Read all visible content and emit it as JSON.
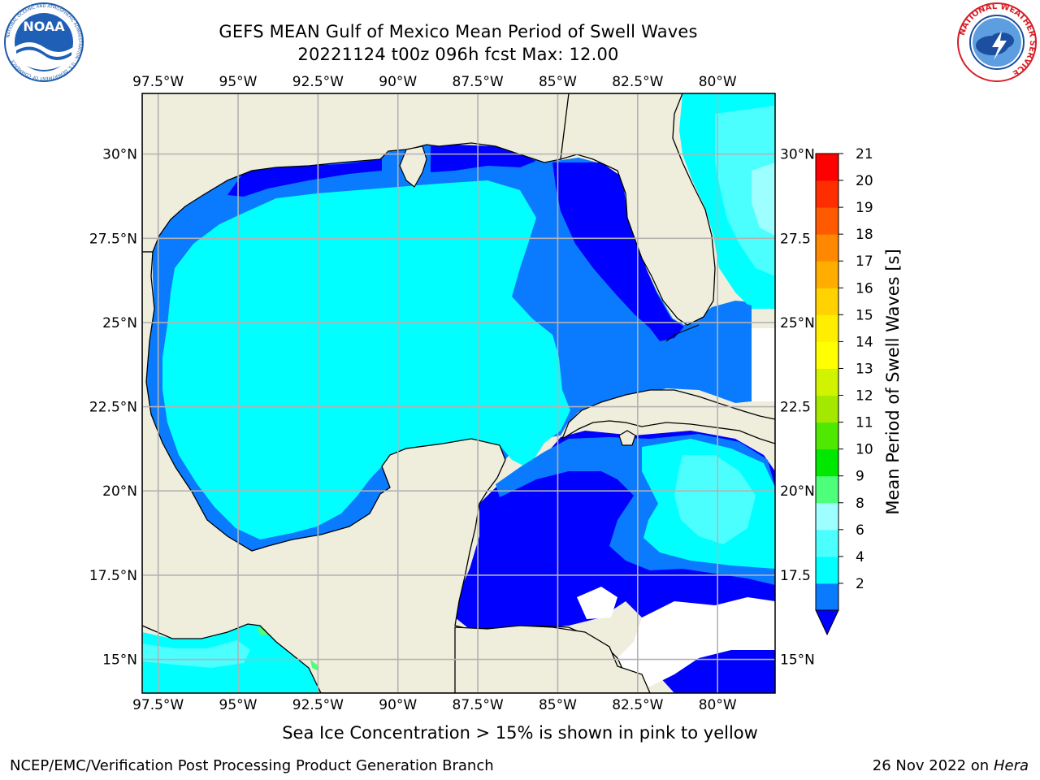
{
  "header": {
    "title_line1": "GEFS MEAN Gulf of Mexico Mean Period of Swell Waves",
    "title_line2": "20221124 t00z 096h fcst   Max: 12.00"
  },
  "logos": {
    "noaa_text": "NOAA",
    "noaa_ring_text": "NATIONAL OCEANIC AND ATMOSPHERIC ADMINISTRATION · U.S. DEPARTMENT OF COMMERCE",
    "nws_ring_text": "NATIONAL WEATHER SERVICE"
  },
  "map": {
    "lon_labels": [
      "97.5°W",
      "95°W",
      "92.5°W",
      "90°W",
      "87.5°W",
      "85°W",
      "82.5°W",
      "80°W"
    ],
    "lon_values": [
      -97.5,
      -95,
      -92.5,
      -90,
      -87.5,
      -85,
      -82.5,
      -80
    ],
    "lat_labels_left": [
      "30°N",
      "27.5°N",
      "25°N",
      "22.5°N",
      "20°N",
      "17.5°N",
      "15°N"
    ],
    "lat_labels_right": [
      "30°N",
      "27.5",
      "25°N",
      "22.5",
      "20°N",
      "17.5",
      "15°N"
    ],
    "lat_values": [
      30,
      27.5,
      25,
      22.5,
      20,
      17.5,
      15
    ],
    "extent": {
      "lon_min": -98,
      "lon_max": -78.2,
      "lat_min": 14,
      "lat_max": 31.8
    },
    "gridlines": true,
    "colors": {
      "land": "#efeedd",
      "ocean_2_4": "#0000ff",
      "ocean_4_6": "#0a7aff",
      "ocean_6_8": "#00ffff",
      "ocean_8_9": "#4cffff",
      "ocean_9_10": "#9dffff",
      "grid": "#b2b2b2"
    }
  },
  "colorbar": {
    "title": "Mean Period of Swell Waves [s]",
    "tick_labels": [
      "21",
      "20",
      "19",
      "18",
      "17",
      "16",
      "15",
      "14",
      "13",
      "12",
      "11",
      "10",
      "9",
      "8",
      "6",
      "4",
      "2"
    ],
    "bounds": [
      2,
      4,
      6,
      8,
      9,
      10,
      11,
      12,
      13,
      14,
      15,
      16,
      17,
      18,
      19,
      20,
      21
    ],
    "colors": [
      "#0a7aff",
      "#00ffff",
      "#4cffff",
      "#9dffff",
      "#4dff7a",
      "#00e800",
      "#4ee800",
      "#a4e800",
      "#d2f300",
      "#ffff00",
      "#ffee00",
      "#ffd200",
      "#ffae00",
      "#ff8800",
      "#ff5a00",
      "#ff2e00",
      "#ff0000"
    ],
    "extend_color": "#0000ff"
  },
  "footer": {
    "caption": "Sea Ice Concentration > 15% is shown in pink to yellow",
    "credit": "NCEP/EMC/Verification Post Processing Product Generation Branch",
    "date": "26 Nov 2022 on",
    "host": "Hera"
  }
}
